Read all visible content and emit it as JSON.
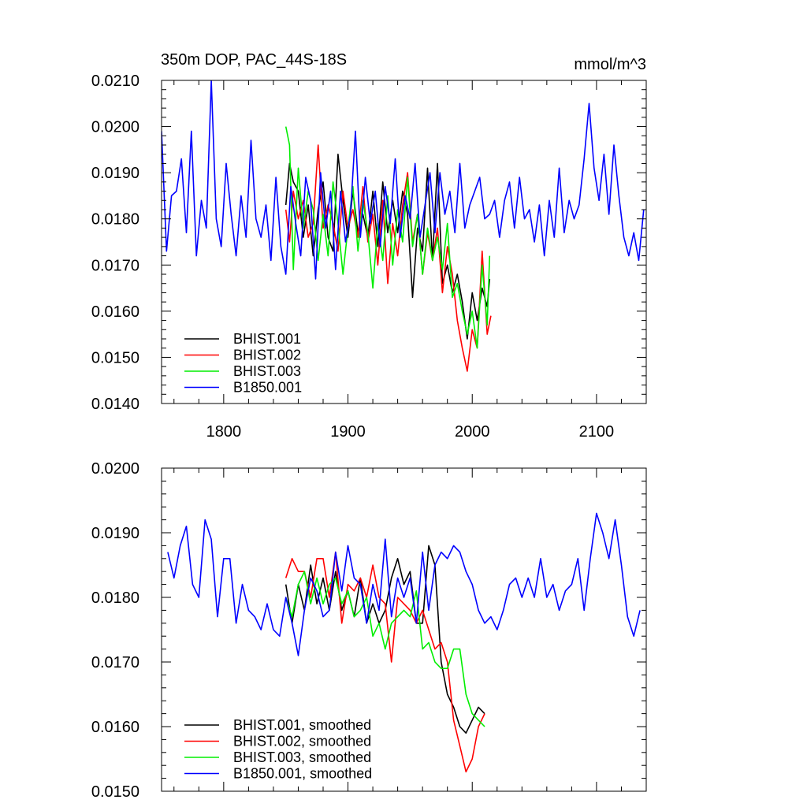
{
  "colors": {
    "black": "#000000",
    "red": "#ff0000",
    "green": "#00ee00",
    "blue": "#0000ff"
  },
  "chart_data": [
    {
      "type": "line",
      "title_left": "350m DOP, PAC_44S-18S",
      "title_right": "mmol/m^3",
      "xlim": [
        1750,
        2140
      ],
      "ylim": [
        0.014,
        0.021
      ],
      "x_ticks": [
        "1800",
        "1900",
        "2000",
        "2100"
      ],
      "y_ticks": [
        "0.0140",
        "0.0150",
        "0.0160",
        "0.0170",
        "0.0180",
        "0.0190",
        "0.0200",
        "0.0210"
      ],
      "legend_position": "bottom-left",
      "series": [
        {
          "name": "BHIST.001",
          "color": "#000000",
          "x": [
            1850,
            1853,
            1856,
            1860,
            1864,
            1868,
            1872,
            1876,
            1880,
            1884,
            1888,
            1892,
            1896,
            1900,
            1904,
            1908,
            1912,
            1916,
            1920,
            1924,
            1928,
            1932,
            1936,
            1940,
            1944,
            1948,
            1952,
            1956,
            1960,
            1964,
            1968,
            1972,
            1976,
            1980,
            1984,
            1988,
            1992,
            1996,
            2000,
            2004,
            2008,
            2012,
            2014
          ],
          "y": [
            0.0183,
            0.0192,
            0.0188,
            0.0186,
            0.0176,
            0.0183,
            0.0172,
            0.0182,
            0.0188,
            0.0176,
            0.0173,
            0.0194,
            0.0184,
            0.0176,
            0.0186,
            0.0177,
            0.0181,
            0.0176,
            0.0186,
            0.0174,
            0.0188,
            0.0177,
            0.0184,
            0.0177,
            0.0186,
            0.0181,
            0.0163,
            0.0178,
            0.0173,
            0.0191,
            0.0171,
            0.0192,
            0.0166,
            0.017,
            0.0164,
            0.0168,
            0.0162,
            0.0154,
            0.0164,
            0.0158,
            0.0165,
            0.0161,
            0.0167
          ]
        },
        {
          "name": "BHIST.002",
          "color": "#ff0000",
          "x": [
            1850,
            1853,
            1856,
            1860,
            1864,
            1868,
            1872,
            1876,
            1880,
            1884,
            1888,
            1892,
            1896,
            1900,
            1904,
            1908,
            1912,
            1916,
            1920,
            1924,
            1928,
            1932,
            1936,
            1940,
            1944,
            1948,
            1952,
            1956,
            1960,
            1964,
            1968,
            1972,
            1976,
            1980,
            1984,
            1988,
            1992,
            1996,
            2000,
            2004,
            2008,
            2012,
            2015
          ],
          "y": [
            0.0182,
            0.0175,
            0.0186,
            0.018,
            0.0184,
            0.0176,
            0.0179,
            0.0196,
            0.0178,
            0.0183,
            0.0179,
            0.0173,
            0.0186,
            0.0178,
            0.0182,
            0.0176,
            0.0187,
            0.0175,
            0.0181,
            0.017,
            0.0184,
            0.0166,
            0.0179,
            0.0172,
            0.0183,
            0.019,
            0.0175,
            0.0181,
            0.0168,
            0.0177,
            0.0171,
            0.0178,
            0.0164,
            0.0174,
            0.0168,
            0.0158,
            0.0152,
            0.0147,
            0.0156,
            0.0152,
            0.0173,
            0.0155,
            0.0159
          ]
        },
        {
          "name": "BHIST.003",
          "color": "#00ee00",
          "x": [
            1850,
            1853,
            1856,
            1860,
            1864,
            1868,
            1872,
            1876,
            1880,
            1884,
            1888,
            1892,
            1896,
            1900,
            1904,
            1908,
            1912,
            1916,
            1920,
            1924,
            1928,
            1932,
            1936,
            1940,
            1944,
            1948,
            1952,
            1956,
            1960,
            1964,
            1968,
            1972,
            1976,
            1980,
            1984,
            1988,
            1992,
            1996,
            2000,
            2004,
            2008,
            2012,
            2014
          ],
          "y": [
            0.02,
            0.0196,
            0.0169,
            0.0191,
            0.0178,
            0.0186,
            0.0182,
            0.0171,
            0.0181,
            0.0172,
            0.0188,
            0.0179,
            0.0168,
            0.0178,
            0.0187,
            0.0173,
            0.0184,
            0.0177,
            0.0165,
            0.0179,
            0.0171,
            0.0185,
            0.017,
            0.0182,
            0.0175,
            0.0189,
            0.0174,
            0.0181,
            0.0168,
            0.0178,
            0.0171,
            0.0176,
            0.0169,
            0.0179,
            0.0163,
            0.0166,
            0.016,
            0.0155,
            0.016,
            0.0152,
            0.017,
            0.0157,
            0.0172
          ]
        },
        {
          "name": "B1850.001",
          "color": "#0000ff",
          "x": [
            1750,
            1754,
            1758,
            1762,
            1766,
            1770,
            1774,
            1778,
            1782,
            1786,
            1790,
            1794,
            1798,
            1802,
            1806,
            1810,
            1814,
            1818,
            1822,
            1826,
            1830,
            1834,
            1838,
            1842,
            1846,
            1850,
            1854,
            1858,
            1862,
            1866,
            1870,
            1874,
            1878,
            1882,
            1886,
            1890,
            1894,
            1898,
            1902,
            1906,
            1910,
            1914,
            1918,
            1922,
            1926,
            1930,
            1934,
            1938,
            1942,
            1946,
            1950,
            1954,
            1958,
            1962,
            1966,
            1970,
            1974,
            1978,
            1982,
            1986,
            1990,
            1994,
            1998,
            2002,
            2006,
            2010,
            2014,
            2018,
            2022,
            2026,
            2030,
            2034,
            2038,
            2042,
            2046,
            2050,
            2054,
            2058,
            2062,
            2066,
            2070,
            2074,
            2078,
            2082,
            2086,
            2090,
            2094,
            2098,
            2102,
            2106,
            2110,
            2114,
            2118,
            2122,
            2126,
            2130,
            2134,
            2138
          ],
          "y": [
            0.0199,
            0.0173,
            0.0185,
            0.0186,
            0.0193,
            0.0177,
            0.0199,
            0.0172,
            0.0184,
            0.0178,
            0.021,
            0.018,
            0.0174,
            0.0192,
            0.0181,
            0.0172,
            0.0185,
            0.0176,
            0.0197,
            0.018,
            0.0176,
            0.0183,
            0.0171,
            0.0189,
            0.0174,
            0.0168,
            0.0187,
            0.0179,
            0.0172,
            0.0189,
            0.0184,
            0.0167,
            0.019,
            0.0178,
            0.0186,
            0.0169,
            0.0186,
            0.0175,
            0.0181,
            0.0199,
            0.0176,
            0.0189,
            0.0179,
            0.0186,
            0.0174,
            0.0187,
            0.0179,
            0.0193,
            0.0176,
            0.0185,
            0.018,
            0.0192,
            0.0176,
            0.0183,
            0.019,
            0.0177,
            0.019,
            0.0181,
            0.0186,
            0.0177,
            0.0192,
            0.0178,
            0.0183,
            0.0186,
            0.0189,
            0.018,
            0.0181,
            0.0184,
            0.0176,
            0.0184,
            0.0188,
            0.0178,
            0.0189,
            0.018,
            0.0182,
            0.0175,
            0.0183,
            0.0172,
            0.0184,
            0.0176,
            0.0191,
            0.0177,
            0.0184,
            0.018,
            0.0183,
            0.0193,
            0.0205,
            0.0191,
            0.0184,
            0.0194,
            0.0181,
            0.0196,
            0.0185,
            0.0176,
            0.0172,
            0.0177,
            0.0171,
            0.0182
          ]
        }
      ]
    },
    {
      "type": "line",
      "xlim": [
        1750,
        2140
      ],
      "ylim": [
        0.015,
        0.02
      ],
      "y_ticks": [
        "0.0150",
        "0.0160",
        "0.0170",
        "0.0180",
        "0.0190",
        "0.0200"
      ],
      "legend_position": "bottom-left",
      "series": [
        {
          "name": "BHIST.001, smoothed",
          "color": "#000000",
          "x": [
            1850,
            1855,
            1860,
            1865,
            1870,
            1875,
            1880,
            1885,
            1890,
            1895,
            1900,
            1905,
            1910,
            1915,
            1920,
            1925,
            1930,
            1935,
            1940,
            1945,
            1950,
            1955,
            1960,
            1965,
            1970,
            1975,
            1980,
            1985,
            1990,
            1995,
            2000,
            2005,
            2010
          ],
          "y": [
            0.0182,
            0.0176,
            0.0182,
            0.0178,
            0.0185,
            0.0179,
            0.0183,
            0.0178,
            0.0184,
            0.0178,
            0.0181,
            0.0177,
            0.0183,
            0.0176,
            0.0179,
            0.0176,
            0.0178,
            0.0183,
            0.0186,
            0.0182,
            0.0184,
            0.0176,
            0.0176,
            0.0188,
            0.0185,
            0.017,
            0.0165,
            0.0163,
            0.016,
            0.0159,
            0.0161,
            0.0163,
            0.0162
          ]
        },
        {
          "name": "BHIST.002, smoothed",
          "color": "#ff0000",
          "x": [
            1850,
            1855,
            1860,
            1865,
            1870,
            1875,
            1880,
            1885,
            1890,
            1895,
            1900,
            1905,
            1910,
            1915,
            1920,
            1925,
            1930,
            1935,
            1940,
            1945,
            1950,
            1955,
            1960,
            1965,
            1970,
            1975,
            1980,
            1985,
            1990,
            1995,
            2000,
            2005,
            2010
          ],
          "y": [
            0.0183,
            0.0186,
            0.0184,
            0.0184,
            0.018,
            0.0186,
            0.0186,
            0.018,
            0.0187,
            0.0176,
            0.0182,
            0.0181,
            0.0183,
            0.018,
            0.0185,
            0.018,
            0.0179,
            0.017,
            0.018,
            0.0179,
            0.0178,
            0.0176,
            0.0178,
            0.0175,
            0.0172,
            0.0173,
            0.017,
            0.0161,
            0.0157,
            0.0153,
            0.0155,
            0.016,
            0.0162
          ]
        },
        {
          "name": "BHIST.003, smoothed",
          "color": "#00ee00",
          "x": [
            1850,
            1855,
            1860,
            1865,
            1870,
            1875,
            1880,
            1885,
            1890,
            1895,
            1900,
            1905,
            1910,
            1915,
            1920,
            1925,
            1930,
            1935,
            1940,
            1945,
            1950,
            1955,
            1960,
            1965,
            1970,
            1975,
            1980,
            1985,
            1990,
            1995,
            2000,
            2005,
            2010
          ],
          "y": [
            0.018,
            0.0177,
            0.0182,
            0.0184,
            0.0179,
            0.0183,
            0.0179,
            0.0182,
            0.0183,
            0.0179,
            0.0181,
            0.0177,
            0.0178,
            0.018,
            0.0174,
            0.0176,
            0.0172,
            0.0176,
            0.0177,
            0.0178,
            0.0177,
            0.0181,
            0.0172,
            0.0173,
            0.017,
            0.0169,
            0.0169,
            0.0172,
            0.0172,
            0.0165,
            0.0162,
            0.0161,
            0.016
          ]
        },
        {
          "name": "B1850.001, smoothed",
          "color": "#0000ff",
          "x": [
            1755,
            1760,
            1765,
            1770,
            1775,
            1780,
            1785,
            1790,
            1795,
            1800,
            1805,
            1810,
            1815,
            1820,
            1825,
            1830,
            1835,
            1840,
            1845,
            1850,
            1855,
            1860,
            1865,
            1870,
            1875,
            1880,
            1885,
            1890,
            1895,
            1900,
            1905,
            1910,
            1915,
            1920,
            1925,
            1930,
            1935,
            1940,
            1945,
            1950,
            1955,
            1960,
            1965,
            1970,
            1975,
            1980,
            1985,
            1990,
            1995,
            2000,
            2005,
            2010,
            2015,
            2020,
            2025,
            2030,
            2035,
            2040,
            2045,
            2050,
            2055,
            2060,
            2065,
            2070,
            2075,
            2080,
            2085,
            2090,
            2095,
            2100,
            2105,
            2110,
            2115,
            2120,
            2125,
            2130,
            2135
          ],
          "y": [
            0.0187,
            0.0183,
            0.0188,
            0.0191,
            0.0182,
            0.018,
            0.0192,
            0.0189,
            0.0177,
            0.0186,
            0.0186,
            0.0176,
            0.0182,
            0.0178,
            0.0177,
            0.0175,
            0.0179,
            0.0175,
            0.0174,
            0.018,
            0.0176,
            0.0171,
            0.0178,
            0.0183,
            0.0181,
            0.0177,
            0.0178,
            0.0187,
            0.0181,
            0.0188,
            0.0183,
            0.0182,
            0.0176,
            0.0182,
            0.0178,
            0.0189,
            0.0177,
            0.0183,
            0.018,
            0.0183,
            0.0176,
            0.0187,
            0.0178,
            0.0185,
            0.0187,
            0.0186,
            0.0188,
            0.0187,
            0.0184,
            0.0182,
            0.0178,
            0.0176,
            0.0177,
            0.0175,
            0.0178,
            0.0182,
            0.0183,
            0.018,
            0.0183,
            0.018,
            0.0186,
            0.018,
            0.0182,
            0.0178,
            0.0181,
            0.0182,
            0.0186,
            0.0178,
            0.0186,
            0.0193,
            0.019,
            0.0186,
            0.0192,
            0.0185,
            0.0177,
            0.0174,
            0.0178
          ]
        }
      ]
    }
  ]
}
